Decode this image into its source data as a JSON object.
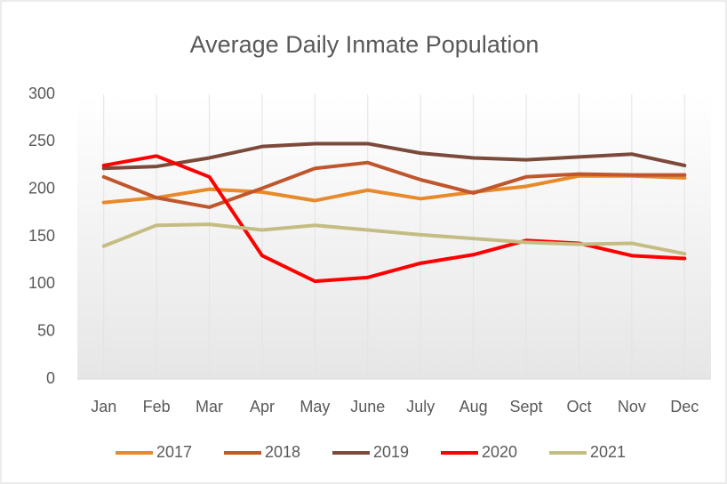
{
  "chart_data": {
    "type": "line",
    "title": "Average Daily Inmate Population",
    "categories": [
      "Jan",
      "Feb",
      "Mar",
      "Apr",
      "May",
      "June",
      "July",
      "Aug",
      "Sept",
      "Oct",
      "Nov",
      "Dec"
    ],
    "series": [
      {
        "name": "2017",
        "color": "#e8892a",
        "values": [
          186,
          191,
          200,
          197,
          188,
          199,
          190,
          197,
          203,
          214,
          214,
          212
        ]
      },
      {
        "name": "2018",
        "color": "#c0562b",
        "values": [
          213,
          191,
          181,
          201,
          222,
          228,
          210,
          196,
          213,
          216,
          215,
          215
        ]
      },
      {
        "name": "2019",
        "color": "#7b4a3a",
        "values": [
          222,
          224,
          233,
          245,
          248,
          248,
          238,
          233,
          231,
          234,
          237,
          225
        ]
      },
      {
        "name": "2020",
        "color": "#ff0000",
        "values": [
          225,
          235,
          213,
          130,
          103,
          107,
          122,
          131,
          146,
          143,
          130,
          127
        ]
      },
      {
        "name": "2021",
        "color": "#c4bd83",
        "values": [
          140,
          162,
          163,
          157,
          162,
          157,
          152,
          148,
          144,
          142,
          143,
          132
        ]
      }
    ],
    "ylim": [
      0,
      300
    ],
    "yticks": [
      0,
      50,
      100,
      150,
      200,
      250,
      300
    ],
    "legend": "bottom"
  }
}
